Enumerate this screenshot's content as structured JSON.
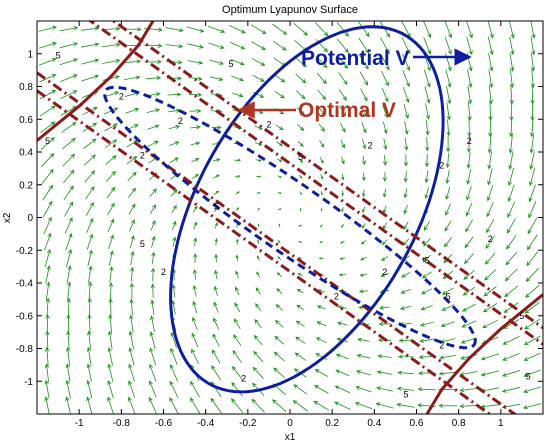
{
  "chart_data": {
    "type": "contour",
    "title": "Optimum Lyapunov Surface",
    "xlabel": "x1",
    "ylabel": "x2",
    "xlim": [
      -1.2,
      1.2
    ],
    "ylim": [
      -1.2,
      1.2
    ],
    "xticks": [
      -1,
      -0.8,
      -0.6,
      -0.4,
      -0.2,
      0,
      0.2,
      0.4,
      0.6,
      0.8,
      1
    ],
    "yticks": [
      1,
      0.8,
      0.6,
      0.4,
      0.2,
      0,
      -0.2,
      -0.4,
      -0.6,
      -0.8,
      -1
    ],
    "series": [
      {
        "name": "Potential V",
        "color": "#0d1f9c",
        "line": "solid",
        "contour_level": 2,
        "shape": "ellipse",
        "center": [
          0.08,
          0.05
        ],
        "semi_axes": [
          1.17,
          0.54
        ],
        "angle_deg": 70
      },
      {
        "name": "Optimal V",
        "color": "#8b1a1a",
        "line": "dashdot",
        "contour_level": 2,
        "kind": "parallel lines",
        "slope": -0.92,
        "offsets": [
          -0.22,
          0.33
        ]
      },
      {
        "name": "",
        "color": "#0d1f9c",
        "line": "dashed",
        "contour_level": 2,
        "shape": "ellipse",
        "center": [
          0.0,
          0.0
        ],
        "semi_axes": [
          1.17,
          0.19
        ],
        "angle_deg": -42
      },
      {
        "name": "",
        "color": "#8b1a1a",
        "line": "dashdot",
        "contour_level": 5,
        "kind": "parallel lines",
        "slope": -0.92,
        "offsets": [
          -0.33,
          0.43
        ]
      },
      {
        "name": "",
        "color": "#8b1a1a",
        "line": "solid",
        "contour_level": 5,
        "kind": "curves",
        "description": "outer level-5 curves of Optimal V near the upper-left and lower-right corners"
      }
    ],
    "vector_field": {
      "color": "#1a8f1a",
      "grid_spacing": 0.1
    }
  },
  "annotations": [
    {
      "text": "Potential V",
      "color": "#0d1f9c",
      "arrow_target": [
        0.85,
        1.08
      ]
    },
    {
      "text": "Optimal V",
      "color": "#b0351f",
      "arrow_target": [
        -0.35,
        0.64
      ]
    }
  ],
  "contour_label_text": {
    "two": "2",
    "five": "5"
  }
}
